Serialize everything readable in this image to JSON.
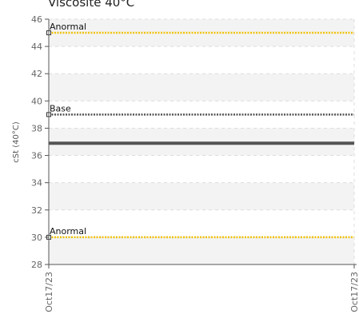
{
  "chart_data": {
    "type": "line",
    "title": "Viscosité 40°C",
    "ylabel": "cSt (40°C)",
    "xlabel": "",
    "ylim": [
      28,
      46
    ],
    "yticks": [
      28,
      30,
      32,
      34,
      36,
      38,
      40,
      42,
      44,
      46
    ],
    "categories": [
      "Oct17/23",
      "Oct17/23"
    ],
    "grid": true,
    "series": [
      {
        "values": [
          36.9,
          36.9
        ],
        "color": "#555555"
      }
    ],
    "reference_lines": [
      {
        "label": "Anormal",
        "value": 45,
        "color": "#f0c20a",
        "style": "dotted"
      },
      {
        "label": "Base",
        "value": 39,
        "color": "#555555",
        "style": "dotted"
      },
      {
        "label": "Anormal",
        "value": 30,
        "color": "#f0c20a",
        "style": "dotted"
      }
    ]
  }
}
